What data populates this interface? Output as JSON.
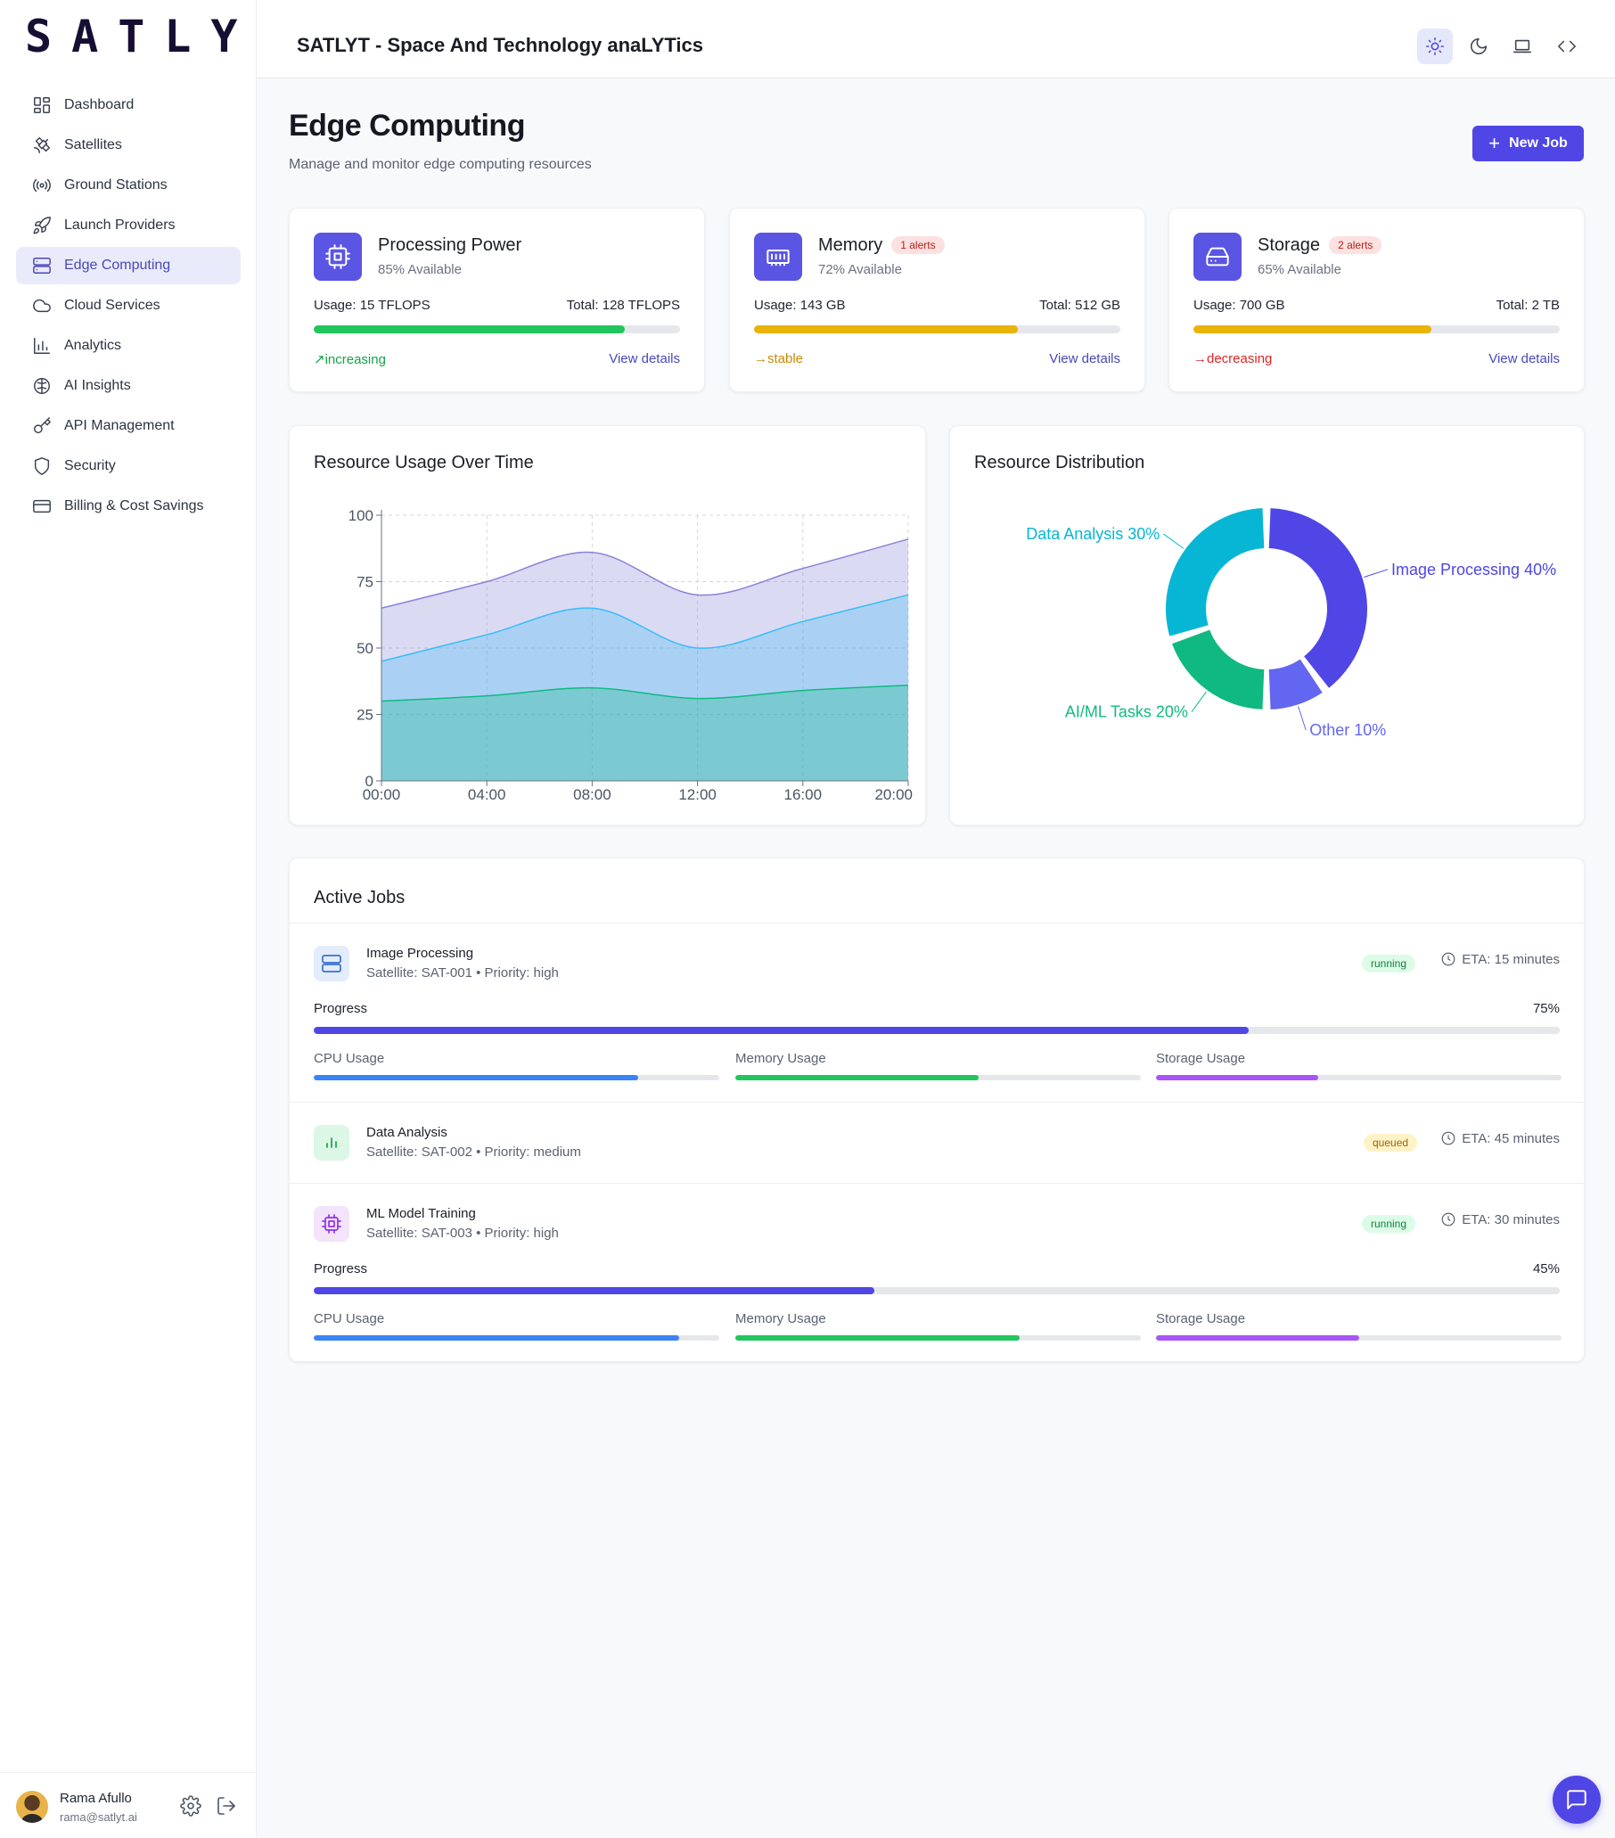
{
  "brand": "SATLYT",
  "app_title": "SATLYT - Space And Technology anaLYTics",
  "nav": [
    {
      "label": "Dashboard",
      "icon": "dashboard-icon"
    },
    {
      "label": "Satellites",
      "icon": "satellite-icon"
    },
    {
      "label": "Ground Stations",
      "icon": "radio-icon"
    },
    {
      "label": "Launch Providers",
      "icon": "rocket-icon"
    },
    {
      "label": "Edge Computing",
      "icon": "server-icon",
      "active": true
    },
    {
      "label": "Cloud Services",
      "icon": "cloud-icon"
    },
    {
      "label": "Analytics",
      "icon": "bar-chart-icon"
    },
    {
      "label": "AI Insights",
      "icon": "brain-icon"
    },
    {
      "label": "API Management",
      "icon": "key-icon"
    },
    {
      "label": "Security",
      "icon": "shield-icon"
    },
    {
      "label": "Billing & Cost Savings",
      "icon": "credit-card-icon"
    }
  ],
  "user": {
    "name": "Rama Afullo",
    "email": "rama@satlyt.ai"
  },
  "header_buttons": [
    "sun-icon",
    "moon-icon",
    "laptop-icon",
    "code-icon"
  ],
  "page": {
    "title": "Edge Computing",
    "subtitle": "Manage and monitor edge computing resources",
    "new_job": "New Job"
  },
  "resources": [
    {
      "name": "Processing Power",
      "available": "85% Available",
      "usage": "Usage: 15 TFLOPS",
      "total": "Total: 128 TFLOPS",
      "fill": 0.85,
      "bar_color": "#22c55e",
      "trend": "increasing",
      "trend_glyph": "↗",
      "trend_color": "#16a34a",
      "link": "View details",
      "alerts": ""
    },
    {
      "name": "Memory",
      "available": "72% Available",
      "usage": "Usage: 143 GB",
      "total": "Total: 512 GB",
      "fill": 0.72,
      "bar_color": "#eab308",
      "trend": "stable",
      "trend_glyph": "→",
      "trend_color": "#ca8a04",
      "link": "View details",
      "alerts": "1 alerts"
    },
    {
      "name": "Storage",
      "available": "65% Available",
      "usage": "Usage: 700 GB",
      "total": "Total: 2 TB",
      "fill": 0.65,
      "bar_color": "#eab308",
      "trend": "decreasing",
      "trend_glyph": "→",
      "trend_color": "#dc2626",
      "link": "View details",
      "alerts": "2 alerts"
    }
  ],
  "chart_data": [
    {
      "type": "area",
      "title": "Resource Usage Over Time",
      "categories": [
        "00:00",
        "04:00",
        "08:00",
        "12:00",
        "16:00",
        "20:00"
      ],
      "ylim": [
        0,
        100
      ],
      "yticks": [
        0,
        25,
        50,
        75,
        100
      ],
      "grid": true,
      "series": [
        {
          "values": [
            65,
            75,
            86,
            70,
            80,
            91
          ],
          "color": "#8884d8"
        },
        {
          "values": [
            45,
            55,
            65,
            50,
            60,
            70
          ],
          "color": "#38bdf8"
        },
        {
          "values": [
            30,
            32,
            35,
            31,
            34,
            36
          ],
          "color": "#10b981"
        }
      ]
    },
    {
      "type": "pie",
      "title": "Resource Distribution",
      "labels": [
        "Image Processing",
        "Other",
        "AI/ML Tasks",
        "Data Analysis"
      ],
      "values": [
        40,
        10,
        20,
        30
      ],
      "colors": [
        "#4f46e5",
        "#6366f1",
        "#10b981",
        "#06b6d4"
      ],
      "data_labels": [
        "Image Processing 40%",
        "Other 10%",
        "AI/ML Tasks 20%",
        "Data Analysis 30%"
      ]
    }
  ],
  "jobs": {
    "title": "Active Jobs",
    "progress_label": "Progress",
    "cpu_label": "CPU Usage",
    "mem_label": "Memory Usage",
    "storage_label": "Storage Usage",
    "items": [
      {
        "name": "Image Processing",
        "meta": "Satellite: SAT-001 • Priority: high",
        "status": "running",
        "eta": "ETA: 15 minutes",
        "progress": "75%",
        "progress_value": 0.75,
        "cpu": 0.8,
        "mem": 0.6,
        "storage": 0.4
      },
      {
        "name": "Data Analysis",
        "meta": "Satellite: SAT-002 • Priority: medium",
        "status": "queued",
        "eta": "ETA: 45 minutes"
      },
      {
        "name": "ML Model Training",
        "meta": "Satellite: SAT-003 • Priority: high",
        "status": "running",
        "eta": "ETA: 30 minutes",
        "progress": "45%",
        "progress_value": 0.45,
        "cpu": 0.9,
        "mem": 0.7,
        "storage": 0.5
      }
    ]
  }
}
